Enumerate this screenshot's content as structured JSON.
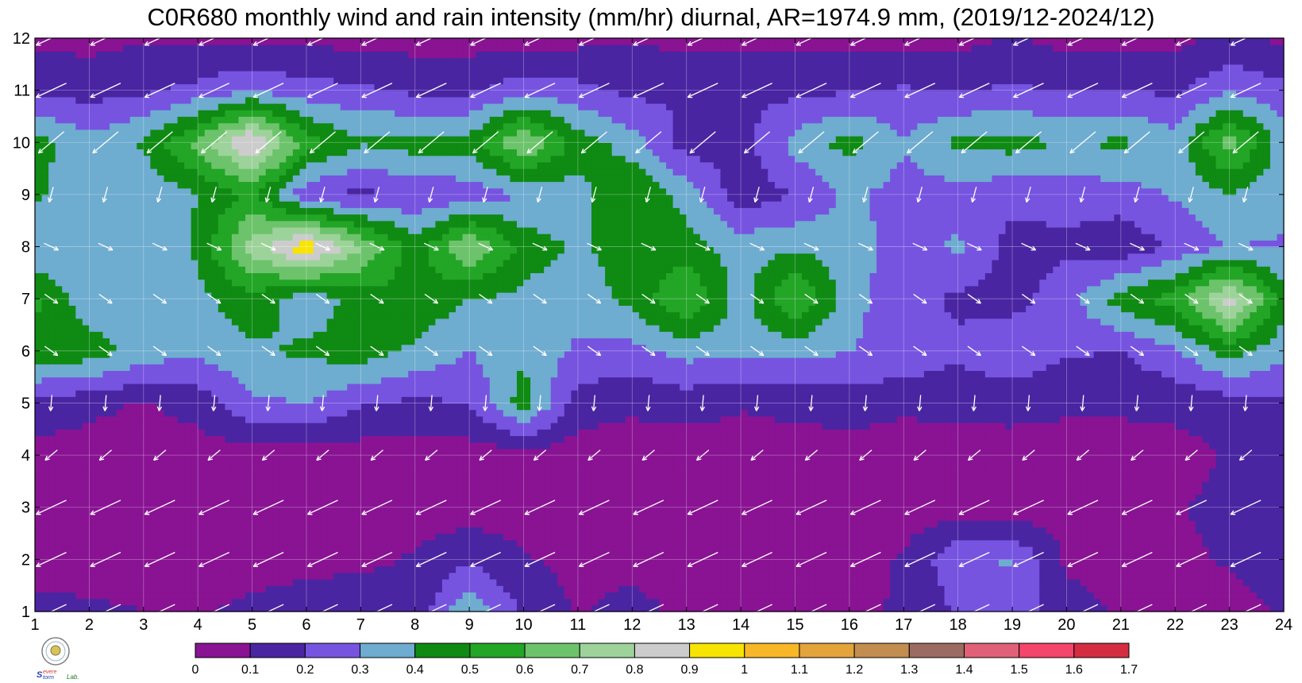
{
  "title": "C0R680 monthly wind and rain intensity (mm/hr) diurnal, AR=1974.9 mm, (2019/12-2024/12)",
  "logo_text": "Severe Storm Lab.",
  "chart_data": {
    "type": "heatmap",
    "title": "C0R680 monthly wind and rain intensity (mm/hr) diurnal, AR=1974.9 mm, (2019/12-2024/12)",
    "xlabel": "",
    "ylabel": "",
    "xlim": [
      1,
      24
    ],
    "ylim": [
      1,
      12
    ],
    "x_ticks": [
      1,
      2,
      3,
      4,
      5,
      6,
      7,
      8,
      9,
      10,
      11,
      12,
      13,
      14,
      15,
      16,
      17,
      18,
      19,
      20,
      21,
      22,
      23,
      24
    ],
    "y_ticks": [
      1,
      2,
      3,
      4,
      5,
      6,
      7,
      8,
      9,
      10,
      11,
      12
    ],
    "grid": true,
    "hours": [
      1,
      2,
      3,
      4,
      5,
      6,
      7,
      8,
      9,
      10,
      11,
      12,
      13,
      14,
      15,
      16,
      17,
      18,
      19,
      20,
      21,
      22,
      23,
      24
    ],
    "months": [
      1,
      2,
      3,
      4,
      5,
      6,
      7,
      8,
      9,
      10,
      11,
      12
    ],
    "rain_intensity": [
      [
        0.13,
        0.11,
        0.1,
        0.09,
        0.12,
        0.16,
        0.17,
        0.12,
        0.4,
        0.18,
        0.09,
        0.14,
        0.07,
        0.06,
        0.06,
        0.08,
        0.11,
        0.21,
        0.26,
        0.14,
        0.09,
        0.08,
        0.06,
        0.11
      ],
      [
        0.06,
        0.07,
        0.08,
        0.07,
        0.06,
        0.06,
        0.08,
        0.11,
        0.18,
        0.11,
        0.07,
        0.06,
        0.06,
        0.06,
        0.06,
        0.07,
        0.11,
        0.28,
        0.31,
        0.08,
        0.06,
        0.08,
        0.11,
        0.16
      ],
      [
        0.08,
        0.06,
        0.05,
        0.05,
        0.05,
        0.05,
        0.05,
        0.05,
        0.05,
        0.05,
        0.05,
        0.05,
        0.05,
        0.05,
        0.05,
        0.05,
        0.05,
        0.05,
        0.05,
        0.05,
        0.06,
        0.09,
        0.13,
        0.14
      ],
      [
        0.06,
        0.05,
        0.05,
        0.05,
        0.05,
        0.05,
        0.05,
        0.05,
        0.05,
        0.05,
        0.05,
        0.05,
        0.05,
        0.05,
        0.05,
        0.05,
        0.05,
        0.05,
        0.05,
        0.05,
        0.05,
        0.06,
        0.11,
        0.14
      ],
      [
        0.17,
        0.13,
        0.09,
        0.14,
        0.28,
        0.3,
        0.21,
        0.18,
        0.2,
        0.45,
        0.15,
        0.12,
        0.14,
        0.11,
        0.13,
        0.15,
        0.12,
        0.13,
        0.14,
        0.12,
        0.12,
        0.13,
        0.15,
        0.18
      ],
      [
        0.48,
        0.46,
        0.36,
        0.32,
        0.38,
        0.42,
        0.45,
        0.38,
        0.3,
        0.38,
        0.28,
        0.27,
        0.34,
        0.33,
        0.34,
        0.3,
        0.28,
        0.22,
        0.28,
        0.21,
        0.2,
        0.28,
        0.45,
        0.32
      ],
      [
        0.52,
        0.33,
        0.31,
        0.37,
        0.47,
        0.32,
        0.45,
        0.47,
        0.4,
        0.37,
        0.34,
        0.43,
        0.61,
        0.35,
        0.62,
        0.33,
        0.24,
        0.18,
        0.16,
        0.26,
        0.45,
        0.55,
        0.85,
        0.45
      ],
      [
        0.31,
        0.31,
        0.31,
        0.42,
        0.75,
        0.98,
        0.71,
        0.44,
        0.72,
        0.46,
        0.38,
        0.46,
        0.44,
        0.36,
        0.38,
        0.36,
        0.24,
        0.32,
        0.16,
        0.18,
        0.12,
        0.22,
        0.3,
        0.29
      ],
      [
        0.42,
        0.33,
        0.32,
        0.4,
        0.52,
        0.22,
        0.17,
        0.22,
        0.24,
        0.3,
        0.36,
        0.5,
        0.36,
        0.14,
        0.2,
        0.32,
        0.26,
        0.25,
        0.23,
        0.24,
        0.26,
        0.31,
        0.39,
        0.33
      ],
      [
        0.44,
        0.33,
        0.42,
        0.63,
        0.94,
        0.55,
        0.41,
        0.45,
        0.44,
        0.72,
        0.46,
        0.35,
        0.15,
        0.16,
        0.34,
        0.44,
        0.31,
        0.43,
        0.44,
        0.39,
        0.42,
        0.34,
        0.66,
        0.34
      ],
      [
        0.18,
        0.16,
        0.18,
        0.23,
        0.29,
        0.24,
        0.22,
        0.18,
        0.18,
        0.26,
        0.23,
        0.17,
        0.2,
        0.18,
        0.17,
        0.19,
        0.21,
        0.19,
        0.22,
        0.19,
        0.2,
        0.18,
        0.29,
        0.23
      ],
      [
        0.07,
        0.07,
        0.09,
        0.08,
        0.08,
        0.07,
        0.07,
        0.06,
        0.06,
        0.06,
        0.07,
        0.09,
        0.07,
        0.07,
        0.07,
        0.06,
        0.07,
        0.07,
        0.11,
        0.07,
        0.07,
        0.07,
        0.12,
        0.08
      ]
    ],
    "wind_direction": "predominantly from the east/northeast, turning to from the north in summer months",
    "colorbar": {
      "levels": [
        0,
        0.1,
        0.2,
        0.3,
        0.4,
        0.5,
        0.6,
        0.7,
        0.8,
        0.9,
        1,
        1.1,
        1.2,
        1.3,
        1.4,
        1.5,
        1.6,
        1.7
      ],
      "tick_labels": [
        "0",
        "0.1",
        "0.2",
        "0.3",
        "0.4",
        "0.5",
        "0.6",
        "0.7",
        "0.8",
        "0.9",
        "1",
        "1.1",
        "1.2",
        "1.3",
        "1.4",
        "1.5",
        "1.6",
        "1.7"
      ],
      "colors": [
        "#891393",
        "#4a25a2",
        "#7654e0",
        "#6eacd0",
        "#0f8a13",
        "#23a526",
        "#6dc36b",
        "#9dd39a",
        "#cccccc",
        "#f7e400",
        "#f7b726",
        "#e4a43c",
        "#c38d4f",
        "#9b6b62",
        "#e06177",
        "#f4456b",
        "#d42d42"
      ]
    }
  }
}
